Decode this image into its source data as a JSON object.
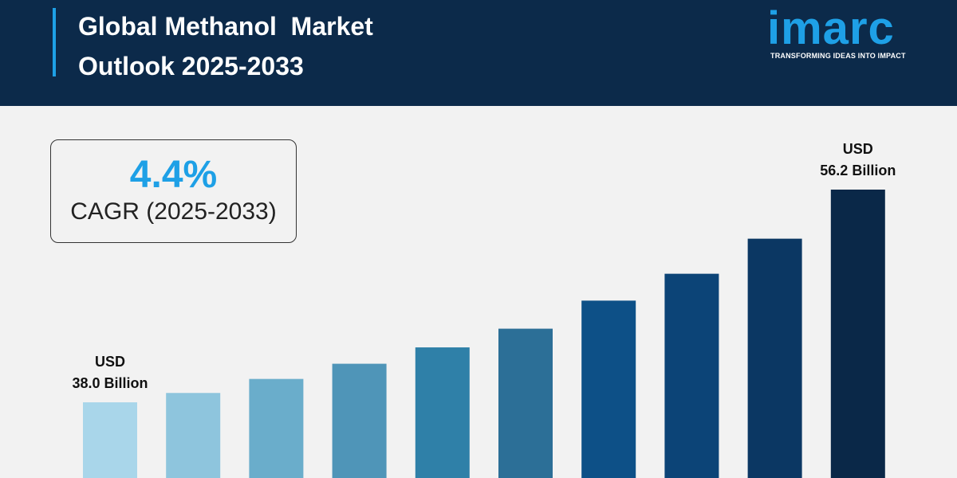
{
  "header": {
    "title": "Global Methanol  Market\nOutlook 2025-2033",
    "logo": "imarc",
    "tagline": "TRANSFORMING IDEAS INTO IMPACT"
  },
  "cagr": {
    "value": "4.4%",
    "label": "CAGR (2025-2033)"
  },
  "chart_data": {
    "type": "bar",
    "values": [
      38.0,
      38.8,
      40.0,
      41.3,
      42.7,
      44.3,
      46.7,
      49.0,
      52.0,
      56.2
    ],
    "value_labels": [
      "USD\n38.0 Billion",
      null,
      null,
      null,
      null,
      null,
      null,
      null,
      null,
      "USD\n56.2 Billion"
    ],
    "colors": [
      "#a9d6ea",
      "#8ec5dd",
      "#6aadcb",
      "#4f95b8",
      "#2f80a8",
      "#2c6f97",
      "#0d5087",
      "#0c4477",
      "#0b3763",
      "#0a2848"
    ]
  }
}
